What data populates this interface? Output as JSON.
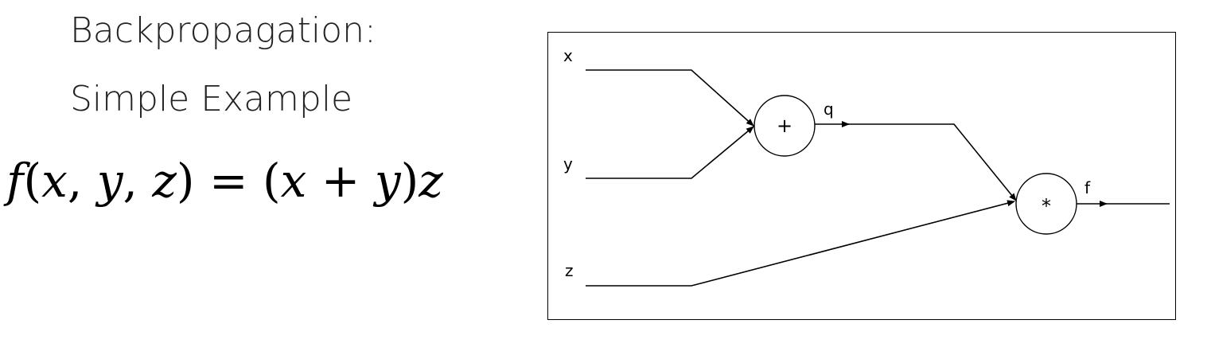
{
  "title": {
    "line1": "Backpropagation:",
    "line2": "Simple Example"
  },
  "equation": {
    "func": "f",
    "args": [
      "x",
      "y",
      "z"
    ],
    "rhs_vars": [
      "x",
      "y",
      "z"
    ]
  },
  "graph": {
    "inputs": [
      "x",
      "y",
      "z"
    ],
    "add_node_symbol": "+",
    "add_output": "q",
    "mul_node_symbol": "*",
    "mul_output": "f"
  }
}
